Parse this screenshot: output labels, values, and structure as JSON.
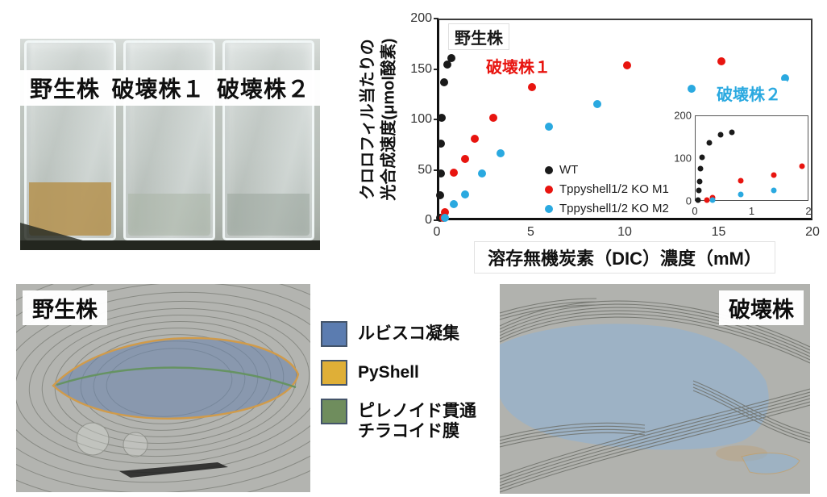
{
  "photo": {
    "labels": [
      "野生株",
      "破壊株１",
      "破壊株２"
    ],
    "flask_culture_colors": [
      "#b5924f",
      "#a9b4a5",
      "#9ba59d"
    ]
  },
  "chart_data": {
    "type": "scatter",
    "title": "",
    "xlabel": "溶存無機炭素（DIC）濃度（mM）",
    "ylabel_lines": [
      "クロロフィル当たりの",
      "光合成速度(μmol酸素)"
    ],
    "xlim": [
      0,
      20
    ],
    "ylim": [
      0,
      200
    ],
    "xticks": [
      0,
      5,
      10,
      15,
      20
    ],
    "yticks": [
      0,
      50,
      100,
      150,
      200
    ],
    "grid": false,
    "legend_position": "inside-right",
    "series": [
      {
        "name": "WT",
        "label": "野生株",
        "color": "#1a1a1a",
        "points": [
          [
            0.05,
            0
          ],
          [
            0.06,
            23
          ],
          [
            0.07,
            45
          ],
          [
            0.09,
            75
          ],
          [
            0.11,
            101
          ],
          [
            0.25,
            137
          ],
          [
            0.45,
            155
          ],
          [
            0.65,
            162
          ]
        ]
      },
      {
        "name": "Tppyshell1/2 KO M1",
        "label": "破壊株１",
        "color": "#e8140f",
        "points": [
          [
            0.2,
            0
          ],
          [
            0.3,
            6
          ],
          [
            0.8,
            46
          ],
          [
            1.4,
            60
          ],
          [
            1.9,
            80
          ],
          [
            2.9,
            101
          ],
          [
            5.0,
            132
          ],
          [
            10.1,
            154
          ],
          [
            15.2,
            158
          ]
        ]
      },
      {
        "name": "Tppyshell1/2 KO M2",
        "label": "破壊株２",
        "color": "#2aa9e0",
        "points": [
          [
            0.3,
            0
          ],
          [
            0.8,
            14
          ],
          [
            1.4,
            24
          ],
          [
            2.3,
            45
          ],
          [
            3.3,
            65
          ],
          [
            5.9,
            92
          ],
          [
            8.5,
            115
          ],
          [
            13.6,
            131
          ],
          [
            18.6,
            141
          ]
        ]
      }
    ],
    "inset": {
      "xlim": [
        0,
        2
      ],
      "ylim": [
        0,
        200
      ],
      "xticks": [
        0,
        1,
        2
      ],
      "yticks": [
        0,
        100,
        200
      ]
    }
  },
  "em_legend": {
    "items": [
      {
        "label": "ルビスコ凝集",
        "color": "#5b7cb0"
      },
      {
        "label": "PyShell",
        "color": "#dfaf37"
      },
      {
        "label": "ピレノイド貫通\nチラコイド膜",
        "color": "#6f8d5d"
      }
    ]
  },
  "em_images": {
    "left_label": "野生株",
    "right_label": "破壊株"
  }
}
